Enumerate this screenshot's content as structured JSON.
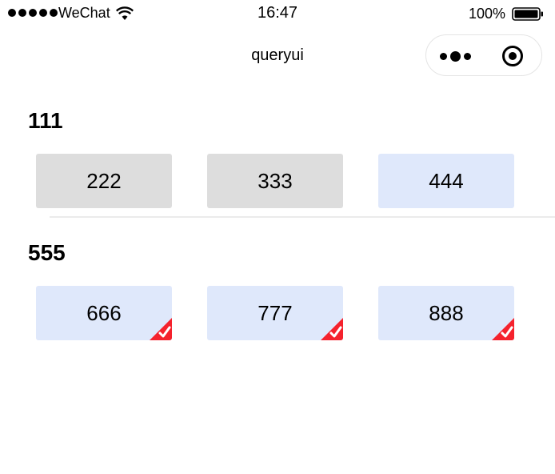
{
  "status_bar": {
    "carrier": "WeChat",
    "time": "16:47",
    "battery": "100%"
  },
  "nav": {
    "title": "queryui"
  },
  "groups": [
    {
      "title": "111",
      "options": [
        {
          "label": "222",
          "selected": false,
          "style": "gray"
        },
        {
          "label": "333",
          "selected": false,
          "style": "gray"
        },
        {
          "label": "444",
          "selected": false,
          "style": "blue"
        }
      ]
    },
    {
      "title": "555",
      "options": [
        {
          "label": "666",
          "selected": true,
          "style": "blue"
        },
        {
          "label": "777",
          "selected": true,
          "style": "blue"
        },
        {
          "label": "888",
          "selected": true,
          "style": "blue"
        }
      ]
    }
  ],
  "colors": {
    "gray_option": "#dddddd",
    "blue_option": "#dfe8fb",
    "check_badge": "#f5222d"
  }
}
